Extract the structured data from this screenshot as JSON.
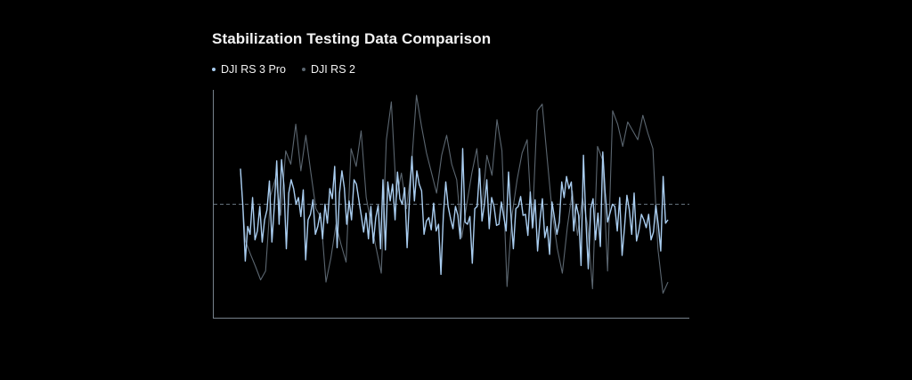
{
  "colors": {
    "background": "#000000",
    "series_primary": "#a9cdf0",
    "series_secondary": "#5b6670",
    "axis": "#77828c",
    "reference_line": "#64717c",
    "text": "#f2f2f2"
  },
  "chart_data": {
    "type": "line",
    "title": "Stabilization Testing Data Comparison",
    "xlabel": "",
    "ylabel": "",
    "grid": false,
    "legend_position": "top-left",
    "reference_line": 0,
    "xlim": [
      0,
      106
    ],
    "ylim": [
      -100,
      100
    ],
    "series": [
      {
        "name": "DJI RS 3 Pro",
        "color": "#a9cdf0",
        "values": [
          32,
          -2,
          -51,
          -20,
          -27,
          6,
          -32,
          -24,
          -2,
          -34,
          -14,
          -5,
          21,
          -34,
          -2,
          39,
          -18,
          40,
          17,
          -40,
          10,
          22,
          14,
          0,
          6,
          -11,
          13,
          -50,
          -14,
          -9,
          4,
          -27,
          -20,
          -8,
          -31,
          0,
          -17,
          14,
          5,
          34,
          -39,
          10,
          30,
          15,
          -18,
          3,
          -14,
          22,
          18,
          4,
          -10,
          -25,
          -8,
          -31,
          -2,
          -35,
          -12,
          -1,
          -40,
          22,
          -41,
          20,
          3,
          18,
          -14,
          29,
          5,
          0,
          15,
          -39,
          5,
          43,
          3,
          30,
          18,
          12,
          -27,
          -15,
          -12,
          -23,
          1,
          -24,
          -18,
          -63,
          -10,
          20,
          -2,
          -13,
          -22,
          -2,
          -10,
          -31,
          50,
          -16,
          -18,
          -11,
          -53,
          -4,
          -2,
          32,
          -15,
          0,
          22,
          -22,
          6,
          -2,
          -19,
          -18,
          2,
          -11,
          -24,
          29,
          -10,
          -40,
          -4,
          -2,
          7,
          -10,
          -9,
          -28,
          11,
          -21,
          4,
          -42,
          -14,
          5,
          -30,
          -20,
          -45,
          2,
          -12,
          -27,
          -16,
          20,
          6,
          25,
          14,
          20,
          -24,
          0,
          -10,
          -55,
          44,
          -14,
          -58,
          -4,
          5,
          -32,
          -8,
          -38,
          47,
          10,
          -16,
          -8,
          0,
          -2,
          -24,
          6,
          -46,
          -21,
          8,
          -5,
          -27,
          10,
          -33,
          -23,
          -9,
          -14,
          -21,
          -9,
          -32,
          -25,
          -1,
          -19,
          -42,
          25,
          -17,
          -14
        ]
      },
      {
        "name": "DJI RS 2",
        "color": "#5b6670",
        "values": [
          28,
          -33,
          -45,
          -56,
          -68,
          -60,
          8,
          24,
          -10,
          48,
          36,
          72,
          30,
          62,
          28,
          -4,
          -12,
          -70,
          -48,
          -18,
          -36,
          -52,
          50,
          34,
          66,
          6,
          -18,
          -40,
          -62,
          58,
          92,
          6,
          28,
          -4,
          34,
          98,
          70,
          46,
          28,
          10,
          44,
          62,
          36,
          22,
          -30,
          0,
          28,
          50,
          -2,
          44,
          26,
          76,
          48,
          -74,
          -10,
          22,
          46,
          58,
          -22,
          84,
          90,
          40,
          -8,
          -40,
          -62,
          -20,
          12,
          -28,
          6,
          -18,
          -76,
          52,
          40,
          -60,
          84,
          72,
          52,
          74,
          66,
          58,
          80,
          64,
          50,
          -40,
          -80,
          -70
        ]
      }
    ]
  }
}
